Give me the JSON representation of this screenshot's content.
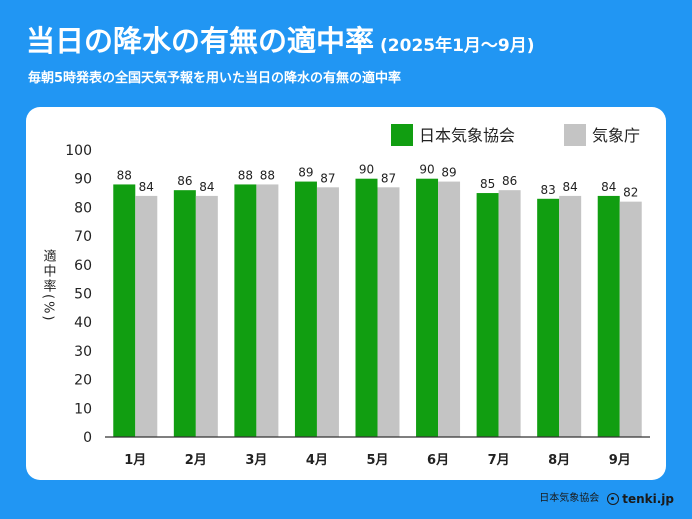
{
  "header": {
    "title": "当日の降水の有無の適中率",
    "period": "(2025年1月〜9月)",
    "subtitle": "毎朝5時発表の全国天気予報を用いた当日の降水の有無の適中率"
  },
  "footer": {
    "credit": "日本気象協会",
    "brand": "tenki.jp"
  },
  "chart_data": {
    "type": "bar",
    "title": "当日の降水の有無の適中率",
    "xlabel": "",
    "ylabel": "適中率(%)",
    "ylim": [
      0,
      100
    ],
    "yticks": [
      0,
      10,
      20,
      30,
      40,
      50,
      60,
      70,
      80,
      90,
      100
    ],
    "grid": false,
    "legend": "top-right",
    "categories": [
      "1月",
      "2月",
      "3月",
      "4月",
      "5月",
      "6月",
      "7月",
      "8月",
      "9月"
    ],
    "series": [
      {
        "name": "日本気象協会",
        "color": "#119e11",
        "values": [
          88,
          86,
          88,
          89,
          90,
          90,
          85,
          83,
          84
        ]
      },
      {
        "name": "気象庁",
        "color": "#c4c4c4",
        "values": [
          84,
          84,
          88,
          87,
          87,
          89,
          86,
          84,
          82
        ]
      }
    ]
  }
}
